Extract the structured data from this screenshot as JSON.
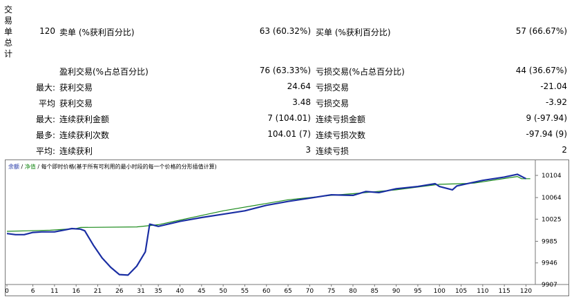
{
  "sidebar_label": "交易单总计",
  "rows": [
    {
      "c1": "120",
      "c2": "卖单 (%获利百分比)",
      "c3": "63 (60.32%)",
      "c4": "买单 (%获利百分比)",
      "c5": "57 (66.67%)"
    },
    {
      "c1": "",
      "c2": "盈利交易(%占总百分比)",
      "c3": "76 (63.33%)",
      "c4": "亏损交易(%占总百分比)",
      "c5": "44 (36.67%)"
    },
    {
      "c1": "最大:",
      "c2": "获利交易",
      "c3": "24.64",
      "c4": "亏损交易",
      "c5": "-21.04"
    },
    {
      "c1": "平均",
      "c2": "获利交易",
      "c3": "3.48",
      "c4": "亏损交易",
      "c5": "-3.92"
    },
    {
      "c1": "最大:",
      "c2": "连续获利金额",
      "c3": "7 (104.01)",
      "c4": "连续亏损金额",
      "c5": "9 (-97.94)"
    },
    {
      "c1": "最多:",
      "c2": "连续获利次数",
      "c3": "104.01 (7)",
      "c4": "连续亏损次数",
      "c5": "-97.94 (9)"
    },
    {
      "c1": "平均:",
      "c2": "连续获利",
      "c3": "3",
      "c4": "连续亏损",
      "c5": "2"
    }
  ],
  "legend": {
    "balance": "余额",
    "sep1": " / ",
    "equity": "净值",
    "sep2": " / ",
    "desc": "每个即时价格(基于所有可利用的最小时段的每一个价格的分形插值计算)"
  },
  "chart_data": {
    "type": "line",
    "x_ticks": [
      "0",
      "6",
      "11",
      "16",
      "21",
      "26",
      "31",
      "35",
      "40",
      "45",
      "50",
      "55",
      "60",
      "65",
      "70",
      "75",
      "80",
      "85",
      "90",
      "95",
      "100",
      "105",
      "110",
      "115",
      "120"
    ],
    "y_ticks": [
      "10104",
      "10064",
      "10025",
      "9985",
      "9946",
      "9907"
    ],
    "ylim": [
      9907,
      10114
    ],
    "xlim": [
      0,
      122
    ],
    "colors": {
      "balance": "#1a2ea3",
      "equity": "#1a8a1a"
    },
    "series": [
      {
        "name": "余额",
        "points": [
          [
            0,
            9999
          ],
          [
            2,
            9997
          ],
          [
            4,
            9997
          ],
          [
            6,
            10001
          ],
          [
            8,
            10002
          ],
          [
            11,
            10002
          ],
          [
            13,
            10005
          ],
          [
            15,
            10008
          ],
          [
            17,
            10007
          ],
          [
            18,
            10004
          ],
          [
            20,
            9978
          ],
          [
            22,
            9955
          ],
          [
            24,
            9938
          ],
          [
            26,
            9925
          ],
          [
            28,
            9924
          ],
          [
            30,
            9940
          ],
          [
            32,
            9966
          ],
          [
            33,
            10016
          ],
          [
            35,
            10012
          ],
          [
            40,
            10021
          ],
          [
            45,
            10028
          ],
          [
            50,
            10034
          ],
          [
            55,
            10040
          ],
          [
            60,
            10050
          ],
          [
            65,
            10057
          ],
          [
            70,
            10063
          ],
          [
            75,
            10069
          ],
          [
            80,
            10068
          ],
          [
            83,
            10075
          ],
          [
            86,
            10073
          ],
          [
            90,
            10080
          ],
          [
            95,
            10084
          ],
          [
            99,
            10089
          ],
          [
            100,
            10084
          ],
          [
            103,
            10078
          ],
          [
            104,
            10085
          ],
          [
            107,
            10090
          ],
          [
            110,
            10095
          ],
          [
            115,
            10101
          ],
          [
            118,
            10106
          ],
          [
            120,
            10098
          ]
        ]
      },
      {
        "name": "净值",
        "points": [
          [
            0,
            10003
          ],
          [
            5,
            10004
          ],
          [
            10,
            10005
          ],
          [
            16,
            10008
          ],
          [
            17,
            10010
          ],
          [
            30,
            10011
          ],
          [
            35,
            10015
          ],
          [
            50,
            10040
          ],
          [
            65,
            10060
          ],
          [
            75,
            10068
          ],
          [
            80,
            10071
          ],
          [
            90,
            10078
          ],
          [
            100,
            10088
          ],
          [
            105,
            10089
          ],
          [
            108,
            10090
          ],
          [
            118,
            10102
          ],
          [
            119,
            10098
          ],
          [
            121,
            10098
          ]
        ]
      }
    ]
  }
}
